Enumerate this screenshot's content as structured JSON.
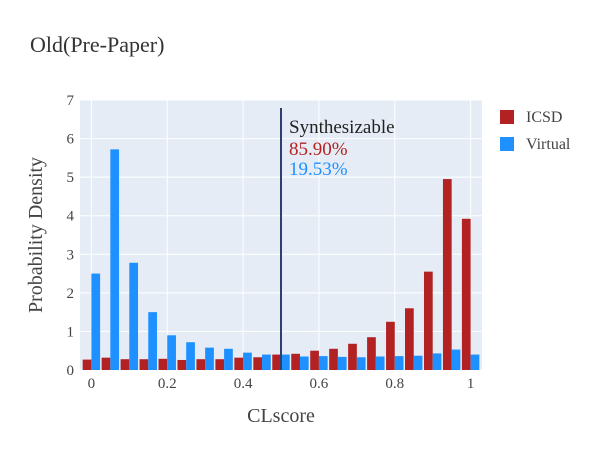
{
  "chart_data": {
    "type": "bar",
    "title": "Old(Pre-Paper)",
    "xlabel": "CLscore",
    "ylabel": "Probability Density",
    "xlim": [
      -0.03,
      1.03
    ],
    "ylim": [
      0,
      7
    ],
    "xticks": [
      0,
      0.2,
      0.4,
      0.6,
      0.8,
      1
    ],
    "xtick_labels": [
      "0",
      "0.2",
      "0.4",
      "0.6",
      "0.8",
      "1"
    ],
    "yticks": [
      0,
      1,
      2,
      3,
      4,
      5,
      6,
      7
    ],
    "ytick_labels": [
      "0",
      "1",
      "2",
      "3",
      "4",
      "5",
      "6",
      "7"
    ],
    "grid": true,
    "legend_position": "top-right",
    "bin_starts": [
      0,
      0.05,
      0.1,
      0.15,
      0.2,
      0.25,
      0.3,
      0.35,
      0.4,
      0.45,
      0.5,
      0.55,
      0.6,
      0.65,
      0.7,
      0.75,
      0.8,
      0.85,
      0.9,
      0.95,
      1.0
    ],
    "bin_width": 0.05,
    "series": [
      {
        "name": "ICSD",
        "color": "#b22222",
        "values": [
          0.27,
          0.32,
          0.28,
          0.28,
          0.29,
          0.26,
          0.28,
          0.28,
          0.32,
          0.33,
          0.4,
          0.42,
          0.5,
          0.55,
          0.68,
          0.85,
          1.25,
          1.6,
          2.55,
          4.95,
          3.92
        ]
      },
      {
        "name": "Virtual",
        "color": "#1e90ff",
        "values": [
          2.5,
          5.72,
          2.78,
          1.5,
          0.9,
          0.72,
          0.58,
          0.55,
          0.45,
          0.4,
          0.4,
          0.35,
          0.36,
          0.34,
          0.33,
          0.35,
          0.36,
          0.37,
          0.43,
          0.53,
          0.4
        ]
      }
    ],
    "threshold": {
      "x": 0.5,
      "line_color": "#2f4070",
      "label": "Synthesizable",
      "icsd_pct": "85.90%",
      "virtual_pct": "19.53%"
    }
  }
}
